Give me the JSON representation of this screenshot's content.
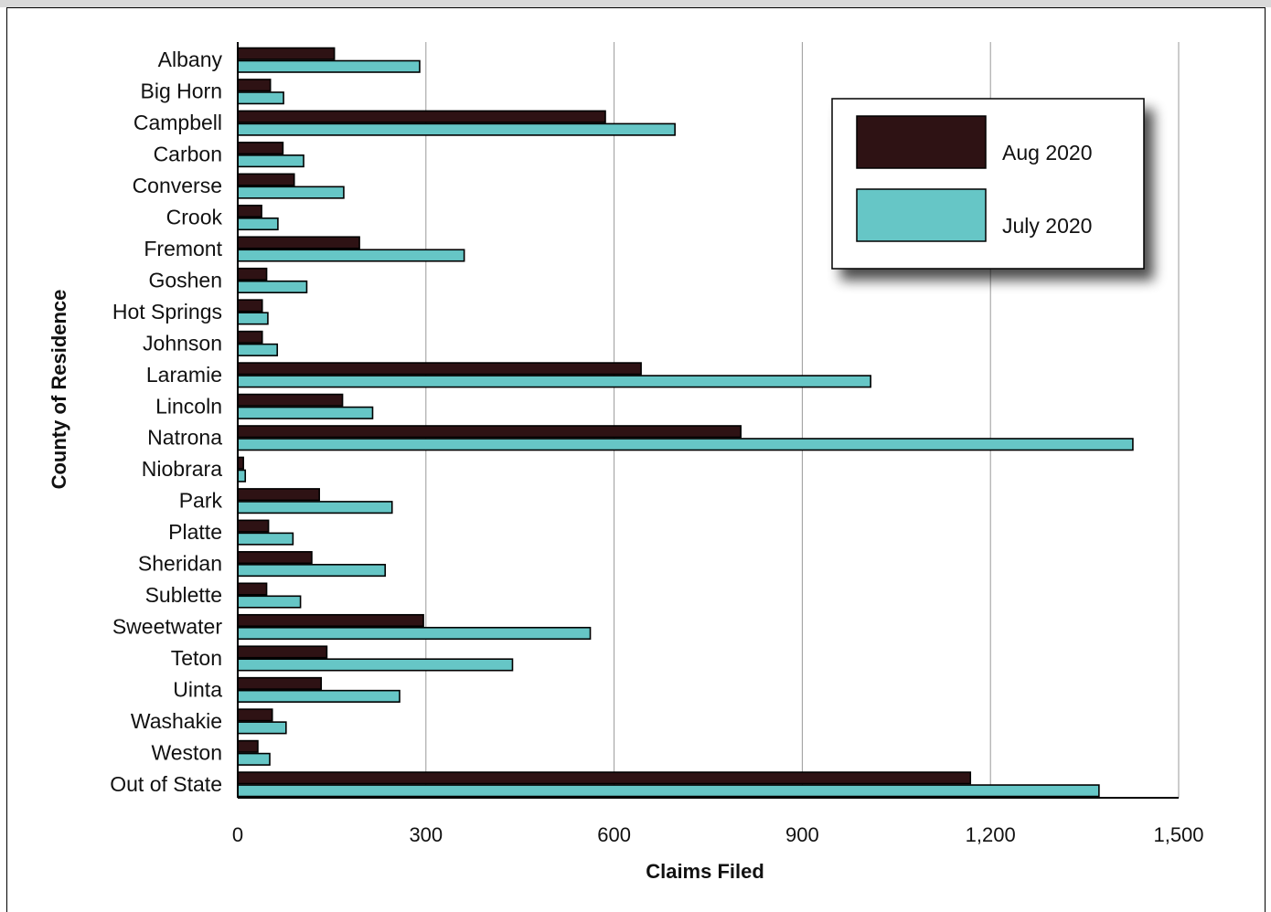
{
  "chart_data": {
    "type": "bar",
    "orientation": "horizontal",
    "xlabel": "Claims Filed",
    "ylabel": "County of Residence",
    "xlim": [
      0,
      1500
    ],
    "xticks": [
      "0",
      "300",
      "600",
      "900",
      "1,200",
      "1,500"
    ],
    "grid": "vertical",
    "legend_position": "top-right",
    "categories": [
      "Albany",
      "Big Horn",
      "Campbell",
      "Carbon",
      "Converse",
      "Crook",
      "Fremont",
      "Goshen",
      "Hot Springs",
      "Johnson",
      "Laramie",
      "Lincoln",
      "Natrona",
      "Niobrara",
      "Park",
      "Platte",
      "Sheridan",
      "Sublette",
      "Sweetwater",
      "Teton",
      "Uinta",
      "Washakie",
      "Weston",
      "Out of State"
    ],
    "series": [
      {
        "name": "Aug 2020",
        "color": "#2e1214",
        "values": [
          154,
          52,
          586,
          72,
          90,
          38,
          194,
          46,
          39,
          39,
          643,
          167,
          802,
          9,
          130,
          49,
          118,
          46,
          296,
          142,
          133,
          55,
          32,
          1168
        ]
      },
      {
        "name": "July 2020",
        "color": "#66c6c6",
        "values": [
          290,
          73,
          697,
          105,
          169,
          64,
          361,
          110,
          48,
          63,
          1009,
          215,
          1427,
          12,
          246,
          88,
          235,
          100,
          562,
          438,
          258,
          77,
          51,
          1373
        ]
      }
    ]
  }
}
